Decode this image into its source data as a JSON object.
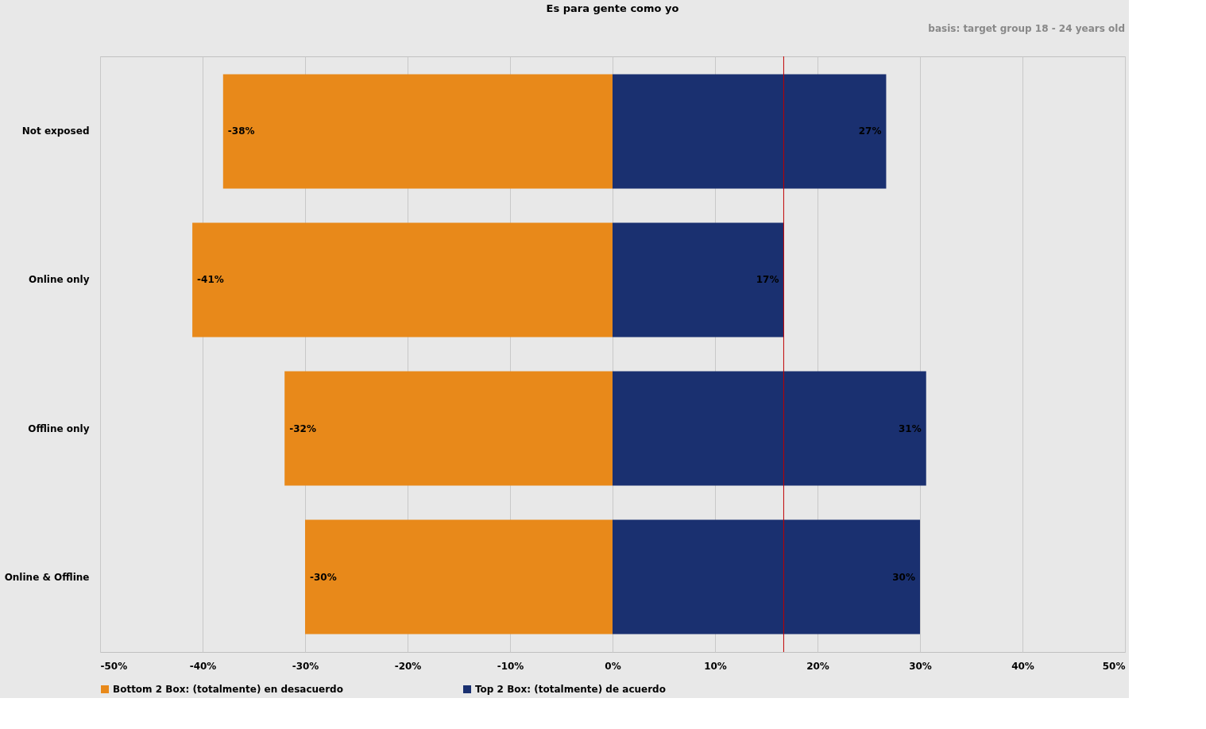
{
  "chart_data": {
    "type": "bar",
    "orientation": "horizontal",
    "title": "Es para gente como yo",
    "annotations": [
      "basis:  target group 18 - 24 years old"
    ],
    "categories": [
      "Not exposed",
      "Online only",
      "Offline only",
      "Online & Offline"
    ],
    "series": [
      {
        "name": "Bottom 2 Box: (totalmente) en desacuerdo",
        "color": "#e8891a",
        "values": [
          -38,
          -41,
          -32,
          -30
        ],
        "value_labels": [
          "-38%",
          "-41%",
          "-32%",
          "-30%"
        ]
      },
      {
        "name": "Top 2 Box: (totalmente) de acuerdo",
        "color": "#1a3070",
        "values": [
          26.7,
          16.7,
          30.6,
          30
        ],
        "value_labels": [
          "27%",
          "17%",
          "31%",
          "30%"
        ]
      }
    ],
    "xlim": [
      -50,
      50
    ],
    "xticks": [
      {
        "value": -50,
        "label": "-50%"
      },
      {
        "value": -40,
        "label": "-40%"
      },
      {
        "value": -30,
        "label": "-30%"
      },
      {
        "value": -20,
        "label": "-20%"
      },
      {
        "value": -10,
        "label": "-10%"
      },
      {
        "value": 0,
        "label": "0%"
      },
      {
        "value": 10,
        "label": "10%"
      },
      {
        "value": 20,
        "label": "20%"
      },
      {
        "value": 30,
        "label": "30%"
      },
      {
        "value": 40,
        "label": "40%"
      },
      {
        "value": 50,
        "label": "50%"
      }
    ],
    "ref_lines": [
      {
        "axis": "x",
        "value": 16.7,
        "color": "#c00000"
      }
    ],
    "grid": "x",
    "legend": "bottom",
    "stacked": true
  }
}
